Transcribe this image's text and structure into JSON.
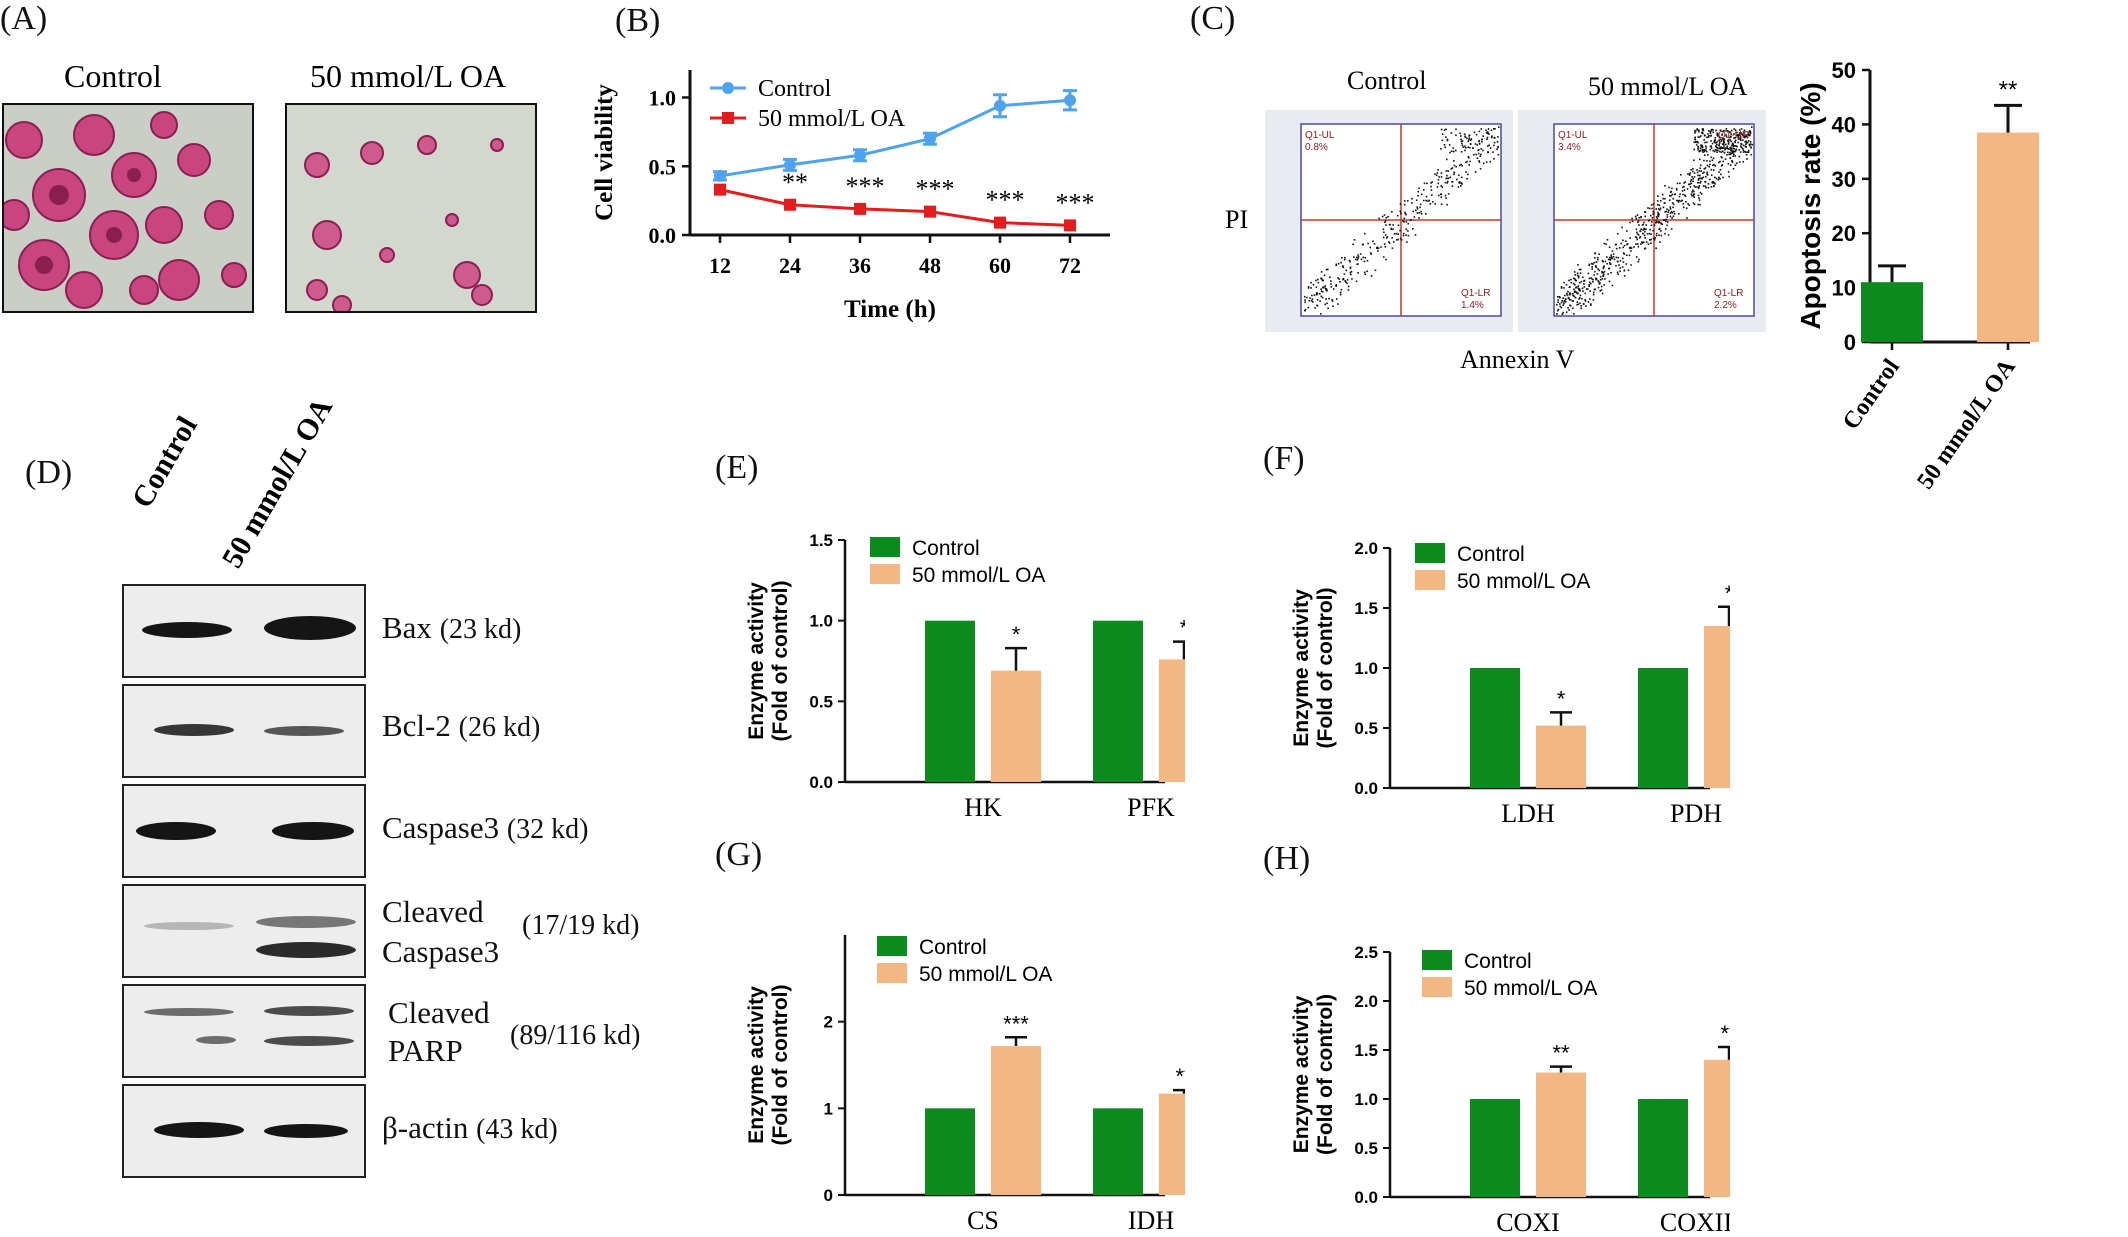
{
  "colors": {
    "green": "#0b8a1d",
    "orange": "#f3b784",
    "blue": "#4ea2ee",
    "red": "#e31d1d"
  },
  "panel_labels": {
    "A": "(A)",
    "B": "(B)",
    "C": "(C)",
    "D": "(D)",
    "E": "(E)",
    "F": "(F)",
    "G": "(G)",
    "H": "(H)"
  },
  "panelA": {
    "left_title": "Control",
    "right_title": "50 mmol/L OA"
  },
  "panelC": {
    "left_title": "Control",
    "right_title": "50 mmol/L OA",
    "ylabel": "PI",
    "xlabel": "Annexin V",
    "quadrants_left": {
      "ul": "Q1-UL",
      "ul_val": "0.8%",
      "lr": "Q1-LR",
      "lr_val": "1.4%"
    },
    "quadrants_right": {
      "ul": "Q1-UL",
      "ul_val": "3.4%",
      "ur": "Q1-UR",
      "lr": "Q1-LR",
      "lr_val": "2.2%"
    }
  },
  "panelD": {
    "lane_labels": [
      "Control",
      "50 mmol/L OA"
    ],
    "blots": [
      {
        "name": "Bax",
        "kd": "(23 kd)"
      },
      {
        "name": "Bcl-2",
        "kd": "(26 kd)"
      },
      {
        "name": "Caspase3",
        "kd": "(32 kd)"
      },
      {
        "name": "Cleaved",
        "name2": "Caspase3",
        "kd": "(17/19 kd)"
      },
      {
        "name": "Cleaved",
        "name2": "PARP",
        "kd": "(89/116 kd)"
      },
      {
        "name": "β-actin",
        "kd": "(43 kd)"
      }
    ]
  },
  "chart_data": [
    {
      "id": "B",
      "type": "line",
      "xlabel": "Time (h)",
      "ylabel": "Cell viability",
      "x": [
        12,
        24,
        36,
        48,
        60,
        72
      ],
      "ylim": [
        0,
        1.2
      ],
      "yticks": [
        0.0,
        0.5,
        1.0
      ],
      "series": [
        {
          "name": "Control",
          "values": [
            0.43,
            0.51,
            0.58,
            0.7,
            0.94,
            0.98
          ],
          "errors": [
            0.03,
            0.04,
            0.04,
            0.04,
            0.08,
            0.07
          ],
          "sig": [
            "",
            "",
            "",
            "",
            "",
            ""
          ]
        },
        {
          "name": "50 mmol/L OA",
          "values": [
            0.33,
            0.22,
            0.19,
            0.17,
            0.09,
            0.07
          ],
          "errors": [
            0.01,
            0.01,
            0.01,
            0.01,
            0.01,
            0.01
          ],
          "sig": [
            "",
            "**",
            "***",
            "***",
            "***",
            "***"
          ]
        }
      ]
    },
    {
      "id": "C",
      "type": "bar",
      "categories": [
        "Control",
        "50 mmol/L OA"
      ],
      "values": [
        11,
        38.5
      ],
      "errors": [
        3,
        5
      ],
      "sig": [
        "",
        "**"
      ],
      "ylabel": "Apoptosis rate (%)",
      "ylim": [
        0,
        50
      ],
      "yticks": [
        0,
        10,
        20,
        30,
        40,
        50
      ]
    },
    {
      "id": "E",
      "type": "bar",
      "categories": [
        "HK",
        "PFK"
      ],
      "ylabel": "Enzyme activity",
      "ylabel2": "(Fold of control)",
      "ylim": [
        0,
        1.5
      ],
      "yticks": [
        "0.0",
        "0.5",
        "1.0",
        "1.5"
      ],
      "series": [
        {
          "name": "Control",
          "values": [
            1.0,
            1.0
          ],
          "errors": [
            0,
            0
          ],
          "sig": [
            "",
            ""
          ]
        },
        {
          "name": "50 mmol/L OA",
          "values": [
            0.69,
            0.76
          ],
          "errors": [
            0.14,
            0.11
          ],
          "sig": [
            "*",
            "*"
          ]
        }
      ]
    },
    {
      "id": "F",
      "type": "bar",
      "categories": [
        "LDH",
        "PDH"
      ],
      "ylabel": "Enzyme activity",
      "ylabel2": "(Fold of control)",
      "ylim": [
        0,
        2.0
      ],
      "yticks": [
        "0.0",
        "0.5",
        "1.0",
        "1.5",
        "2.0"
      ],
      "series": [
        {
          "name": "Control",
          "values": [
            1.0,
            1.0
          ],
          "errors": [
            0,
            0
          ],
          "sig": [
            "",
            ""
          ]
        },
        {
          "name": "50 mmol/L OA",
          "values": [
            0.52,
            1.35
          ],
          "errors": [
            0.11,
            0.16
          ],
          "sig": [
            "*",
            "*"
          ]
        }
      ]
    },
    {
      "id": "G",
      "type": "bar",
      "categories": [
        "CS",
        "IDH"
      ],
      "ylabel": "Enzyme activity",
      "ylabel2": "(Fold of control)",
      "ylim": [
        0,
        3
      ],
      "yticks": [
        "0",
        "1",
        "2"
      ],
      "series": [
        {
          "name": "Control",
          "values": [
            1.0,
            1.0
          ],
          "errors": [
            0,
            0
          ],
          "sig": [
            "",
            ""
          ]
        },
        {
          "name": "50 mmol/L OA",
          "values": [
            1.72,
            1.17
          ],
          "errors": [
            0.1,
            0.04
          ],
          "sig": [
            "***",
            "**"
          ]
        }
      ]
    },
    {
      "id": "H",
      "type": "bar",
      "categories": [
        "COXI",
        "COXII"
      ],
      "ylabel": "Enzyme activity",
      "ylabel2": "(Fold of control)",
      "ylim": [
        0,
        2.5
      ],
      "yticks": [
        "0.0",
        "0.5",
        "1.0",
        "1.5",
        "2.0",
        "2.5"
      ],
      "series": [
        {
          "name": "Control",
          "values": [
            1.0,
            1.0
          ],
          "errors": [
            0,
            0
          ],
          "sig": [
            "",
            ""
          ]
        },
        {
          "name": "50 mmol/L OA",
          "values": [
            1.27,
            1.4
          ],
          "errors": [
            0.06,
            0.13
          ],
          "sig": [
            "**",
            "**"
          ]
        }
      ]
    }
  ]
}
